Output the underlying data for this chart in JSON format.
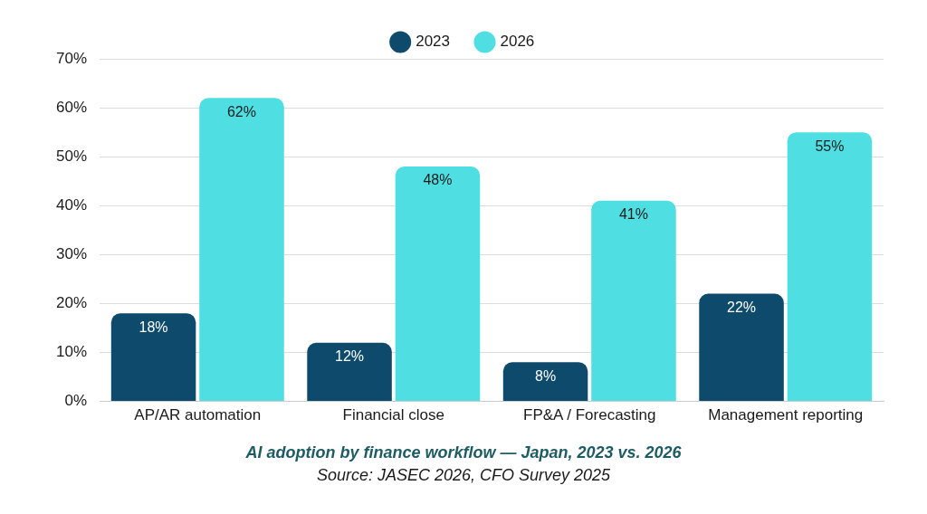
{
  "chart_data": {
    "type": "bar",
    "categories": [
      "AP/AR automation",
      "Financial close",
      "FP&A / Forecasting",
      "Management reporting"
    ],
    "series": [
      {
        "name": "2023",
        "color": "#0d4a6b",
        "values": [
          18,
          12,
          8,
          22
        ],
        "value_labels": [
          "18%",
          "12%",
          "8%",
          "22%"
        ]
      },
      {
        "name": "2026",
        "color": "#4fdfe2",
        "values": [
          62,
          48,
          41,
          55
        ],
        "value_labels": [
          "62%",
          "48%",
          "41%",
          "55%"
        ]
      }
    ],
    "ylim": [
      0,
      70
    ],
    "yticks": [
      {
        "value": 0,
        "label": "0%"
      },
      {
        "value": 10,
        "label": "10%"
      },
      {
        "value": 20,
        "label": "20%"
      },
      {
        "value": 30,
        "label": "30%"
      },
      {
        "value": 40,
        "label": "40%"
      },
      {
        "value": 50,
        "label": "50%"
      },
      {
        "value": 60,
        "label": "60%"
      },
      {
        "value": 70,
        "label": "70%"
      }
    ],
    "grid": "y",
    "legend": "top",
    "annotations": [
      "AI adoption by finance workflow — Japan, 2023 vs. 2026",
      "Source: JASEC 2026, CFO Survey 2025"
    ]
  }
}
